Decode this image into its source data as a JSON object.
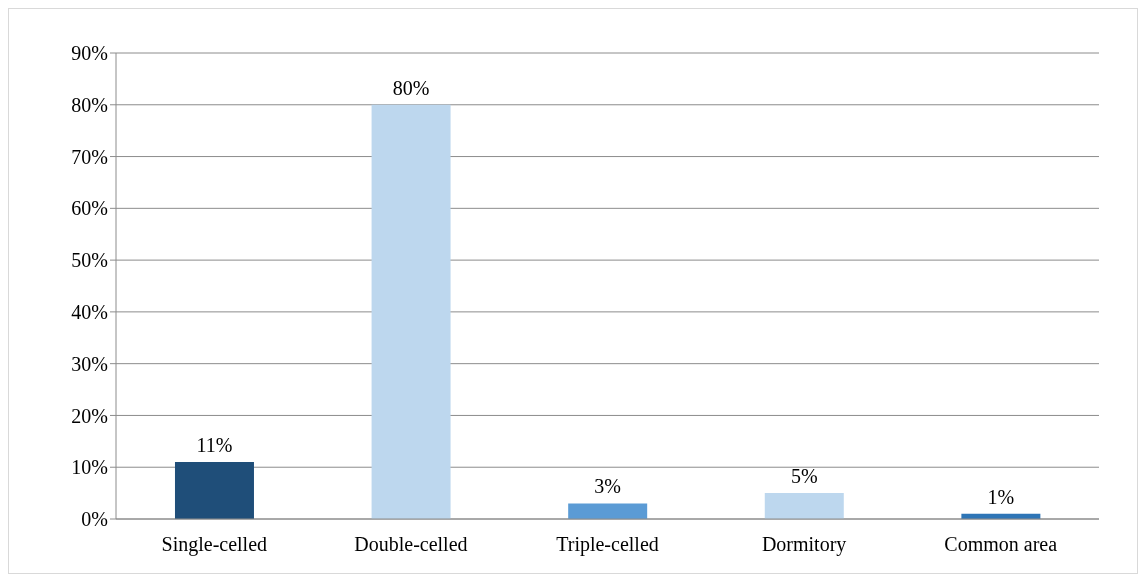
{
  "chart_data": {
    "type": "bar",
    "categories": [
      "Single-celled",
      "Double-celled",
      "Triple-celled",
      "Dormitory",
      "Common area"
    ],
    "values": [
      11,
      80,
      3,
      5,
      1
    ],
    "colors": [
      "#1f4e79",
      "#bdd7ee",
      "#5b9bd5",
      "#bdd7ee",
      "#2e75b6"
    ],
    "value_labels": [
      "11%",
      "80%",
      "3%",
      "5%",
      "1%"
    ],
    "ylim": [
      0,
      90
    ],
    "yticks": [
      {
        "value": 0,
        "label": "0%"
      },
      {
        "value": 10,
        "label": "10%"
      },
      {
        "value": 20,
        "label": "20%"
      },
      {
        "value": 30,
        "label": "30%"
      },
      {
        "value": 40,
        "label": "40%"
      },
      {
        "value": 50,
        "label": "50%"
      },
      {
        "value": 60,
        "label": "60%"
      },
      {
        "value": 70,
        "label": "70%"
      },
      {
        "value": 80,
        "label": "80%"
      },
      {
        "value": 90,
        "label": "90%"
      }
    ],
    "grid": "y",
    "legend": false
  }
}
